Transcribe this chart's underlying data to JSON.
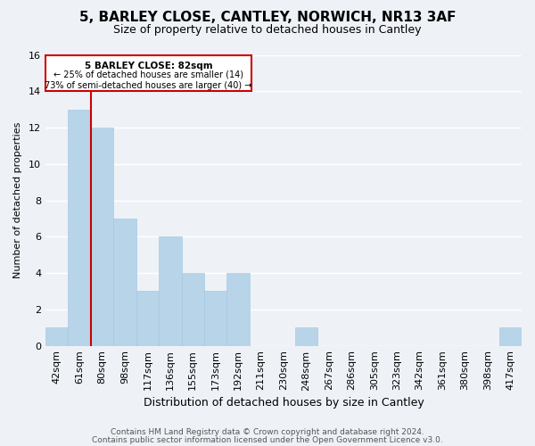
{
  "title": "5, BARLEY CLOSE, CANTLEY, NORWICH, NR13 3AF",
  "subtitle": "Size of property relative to detached houses in Cantley",
  "xlabel": "Distribution of detached houses by size in Cantley",
  "ylabel": "Number of detached properties",
  "bar_color": "#b8d4e8",
  "bar_edge_color": "#a0c4e0",
  "marker_line_color": "#cc0000",
  "categories": [
    "42sqm",
    "61sqm",
    "80sqm",
    "98sqm",
    "117sqm",
    "136sqm",
    "155sqm",
    "173sqm",
    "192sqm",
    "211sqm",
    "230sqm",
    "248sqm",
    "267sqm",
    "286sqm",
    "305sqm",
    "323sqm",
    "342sqm",
    "361sqm",
    "380sqm",
    "398sqm",
    "417sqm"
  ],
  "values": [
    1,
    13,
    12,
    7,
    3,
    6,
    4,
    3,
    4,
    0,
    0,
    1,
    0,
    0,
    0,
    0,
    0,
    0,
    0,
    0,
    1
  ],
  "marker_bar_index": 1,
  "marker_label": "5 BARLEY CLOSE: 82sqm",
  "annotation_line1": "← 25% of detached houses are smaller (14)",
  "annotation_line2": "73% of semi-detached houses are larger (40) →",
  "ylim": [
    0,
    16
  ],
  "yticks": [
    0,
    2,
    4,
    6,
    8,
    10,
    12,
    14,
    16
  ],
  "footer1": "Contains HM Land Registry data © Crown copyright and database right 2024.",
  "footer2": "Contains public sector information licensed under the Open Government Licence v3.0.",
  "background_color": "#eef2f7",
  "grid_color": "#ffffff",
  "annotation_box_facecolor": "#ffffff",
  "annotation_box_edgecolor": "#cc0000",
  "title_fontsize": 11,
  "subtitle_fontsize": 9,
  "ylabel_fontsize": 8,
  "xlabel_fontsize": 9,
  "tick_fontsize": 8,
  "footer_fontsize": 6.5
}
